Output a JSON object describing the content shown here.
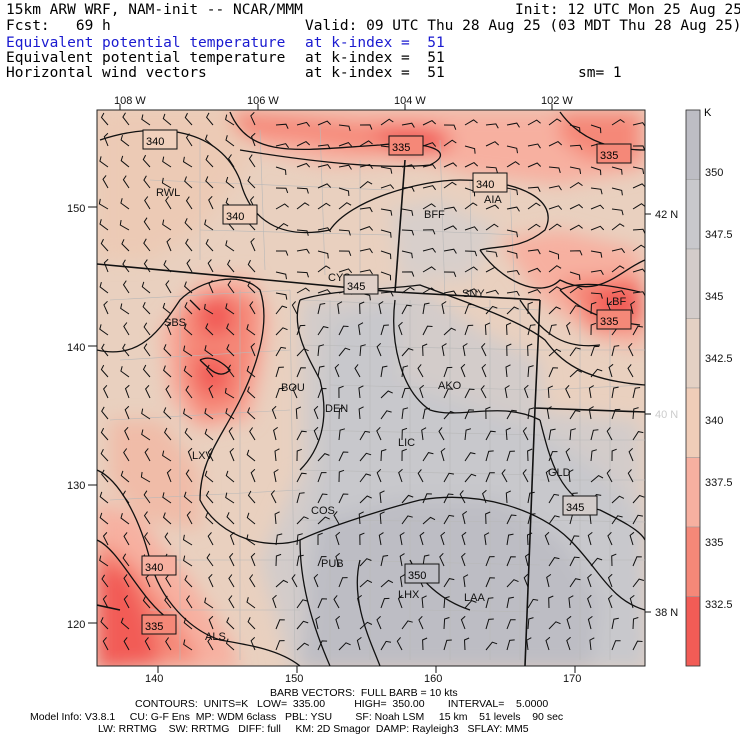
{
  "header": {
    "model_line": "15km ARW WRF, NAM-init -- NCAR/MMM",
    "init": "Init: 12 UTC Mon 25 Aug 25",
    "fcst": "Fcst:   69 h",
    "valid": "Valid: 09 UTC Thu 28 Aug 25 (03 MDT Thu 28 Aug 25)",
    "fields": [
      {
        "name": "Equivalent potential temperature",
        "level": "at k-index =  51",
        "color": "#1a1ad0"
      },
      {
        "name": "Equivalent potential temperature",
        "level": "at k-index =  51",
        "color": "#000000"
      },
      {
        "name": "Horizontal wind vectors",
        "level": "at k-index =  51",
        "color": "#000000"
      }
    ],
    "smooth": "sm= 1"
  },
  "map": {
    "top_lon_labels": [
      "108 W",
      "106 W",
      "104 W",
      "102 W"
    ],
    "right_lat_labels": [
      "42 N",
      "40 N",
      "38 N"
    ],
    "left_y_ticks": [
      "150",
      "140",
      "130",
      "120"
    ],
    "bottom_x_ticks": [
      "140",
      "150",
      "160",
      "170"
    ],
    "stations": [
      "RWL",
      "BFF",
      "AIA",
      "CYS",
      "SNY",
      "LBF",
      "SBS",
      "BOU",
      "AKO",
      "DEN",
      "LXV",
      "LIC",
      "GLD",
      "COS",
      "PUB",
      "LHX",
      "LAA",
      "ALS"
    ],
    "contour_labels": [
      "340",
      "335",
      "335",
      "340",
      "340",
      "345",
      "335",
      "345",
      "340",
      "350",
      "335"
    ],
    "colors": {
      "c332": "#f25c56",
      "c335": "#f58878",
      "c337": "#f7b0a0",
      "c340": "#f0cdb8",
      "c342": "#e4d1c4",
      "c345": "#d3ccca",
      "c347": "#c8c8cc",
      "c350": "#bdbdc4"
    }
  },
  "colorbar": {
    "unit": "K",
    "labels": [
      "350",
      "347.5",
      "345",
      "342.5",
      "340",
      "337.5",
      "335",
      "332.5"
    ],
    "colors": [
      "#bdbdc4",
      "#c8c8cc",
      "#d3ccca",
      "#e4d1c4",
      "#f0cdb8",
      "#f7b0a0",
      "#f58878",
      "#f25c56"
    ]
  },
  "footer": {
    "barb": "BARB VECTORS:  FULL BARB = 10 kts",
    "contours": "CONTOURS:  UNITS=K   LOW=  335.00          HIGH=  350.00        INTERVAL=    5.0000",
    "model_info": "Model Info: V3.8.1     CU: G-F Ens  MP: WDM 6class   PBL: YSU        SF: Noah LSM     15 km    51 levels    90 sec",
    "physics": "LW: RRTMG    SW: RRTMG   DIFF: full     KM: 2D Smagor  DAMP: Rayleigh3   SFLAY: MM5"
  }
}
